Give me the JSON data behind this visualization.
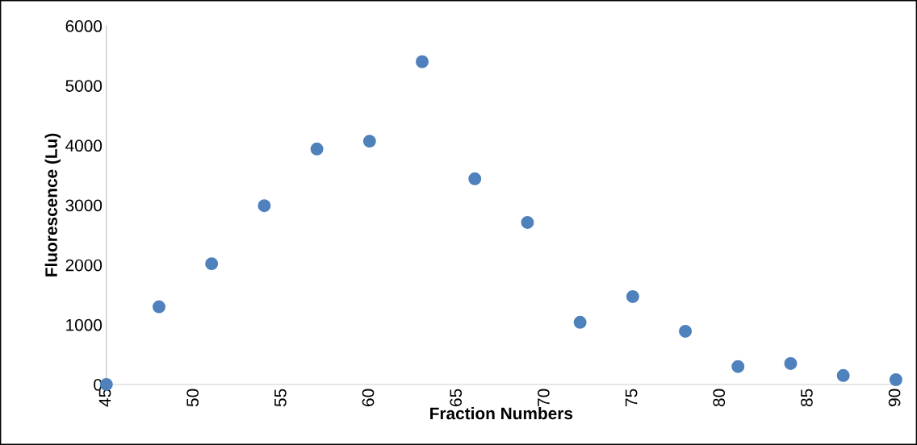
{
  "chart_data": {
    "type": "scatter",
    "xlabel": "Fraction Numbers",
    "ylabel": "Fluorescence (Lu)",
    "x": [
      45,
      48,
      51,
      54,
      57,
      60,
      63,
      66,
      69,
      72,
      75,
      78,
      81,
      84,
      87,
      90
    ],
    "series": [
      {
        "color": "#4f81bd",
        "values": [
          0,
          1300,
          2020,
          2990,
          3940,
          4070,
          5400,
          3440,
          2710,
          1040,
          1470,
          890,
          300,
          350,
          150,
          80
        ]
      }
    ],
    "xlim": [
      45,
      90
    ],
    "xticks": [
      45,
      50,
      55,
      60,
      65,
      70,
      75,
      80,
      85,
      90
    ],
    "ylim": [
      0,
      6000
    ],
    "yticks": [
      0,
      1000,
      2000,
      3000,
      4000,
      5000,
      6000
    ],
    "grid": false,
    "legend": false,
    "marker": "circle"
  }
}
